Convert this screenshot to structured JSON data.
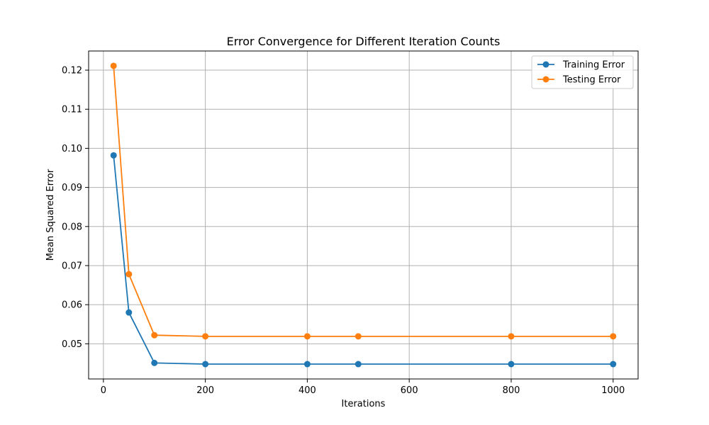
{
  "chart_data": {
    "type": "line",
    "title": "Error Convergence for Different Iteration Counts",
    "xlabel": "Iterations",
    "ylabel": "Mean Squared Error",
    "x": [
      20,
      50,
      100,
      200,
      400,
      500,
      800,
      1000
    ],
    "series": [
      {
        "name": "Training Error",
        "color": "#1f77b4",
        "values": [
          0.0982,
          0.058,
          0.0451,
          0.0448,
          0.0448,
          0.0448,
          0.0448,
          0.0448
        ]
      },
      {
        "name": "Testing Error",
        "color": "#ff7f0e",
        "values": [
          0.1211,
          0.0678,
          0.0522,
          0.0519,
          0.0519,
          0.0519,
          0.0519,
          0.0519
        ]
      }
    ],
    "xlim": [
      -29,
      1049
    ],
    "ylim": [
      0.041,
      0.1249
    ],
    "xticks": [
      0,
      200,
      400,
      600,
      800,
      1000
    ],
    "xtick_labels": [
      "0",
      "200",
      "400",
      "600",
      "800",
      "1000"
    ],
    "yticks": [
      0.05,
      0.06,
      0.07,
      0.08,
      0.09,
      0.1,
      0.11,
      0.12
    ],
    "ytick_labels": [
      "0.05",
      "0.06",
      "0.07",
      "0.08",
      "0.09",
      "0.10",
      "0.11",
      "0.12"
    ],
    "grid": true,
    "legend_position": "top-right",
    "marker": "circle"
  }
}
